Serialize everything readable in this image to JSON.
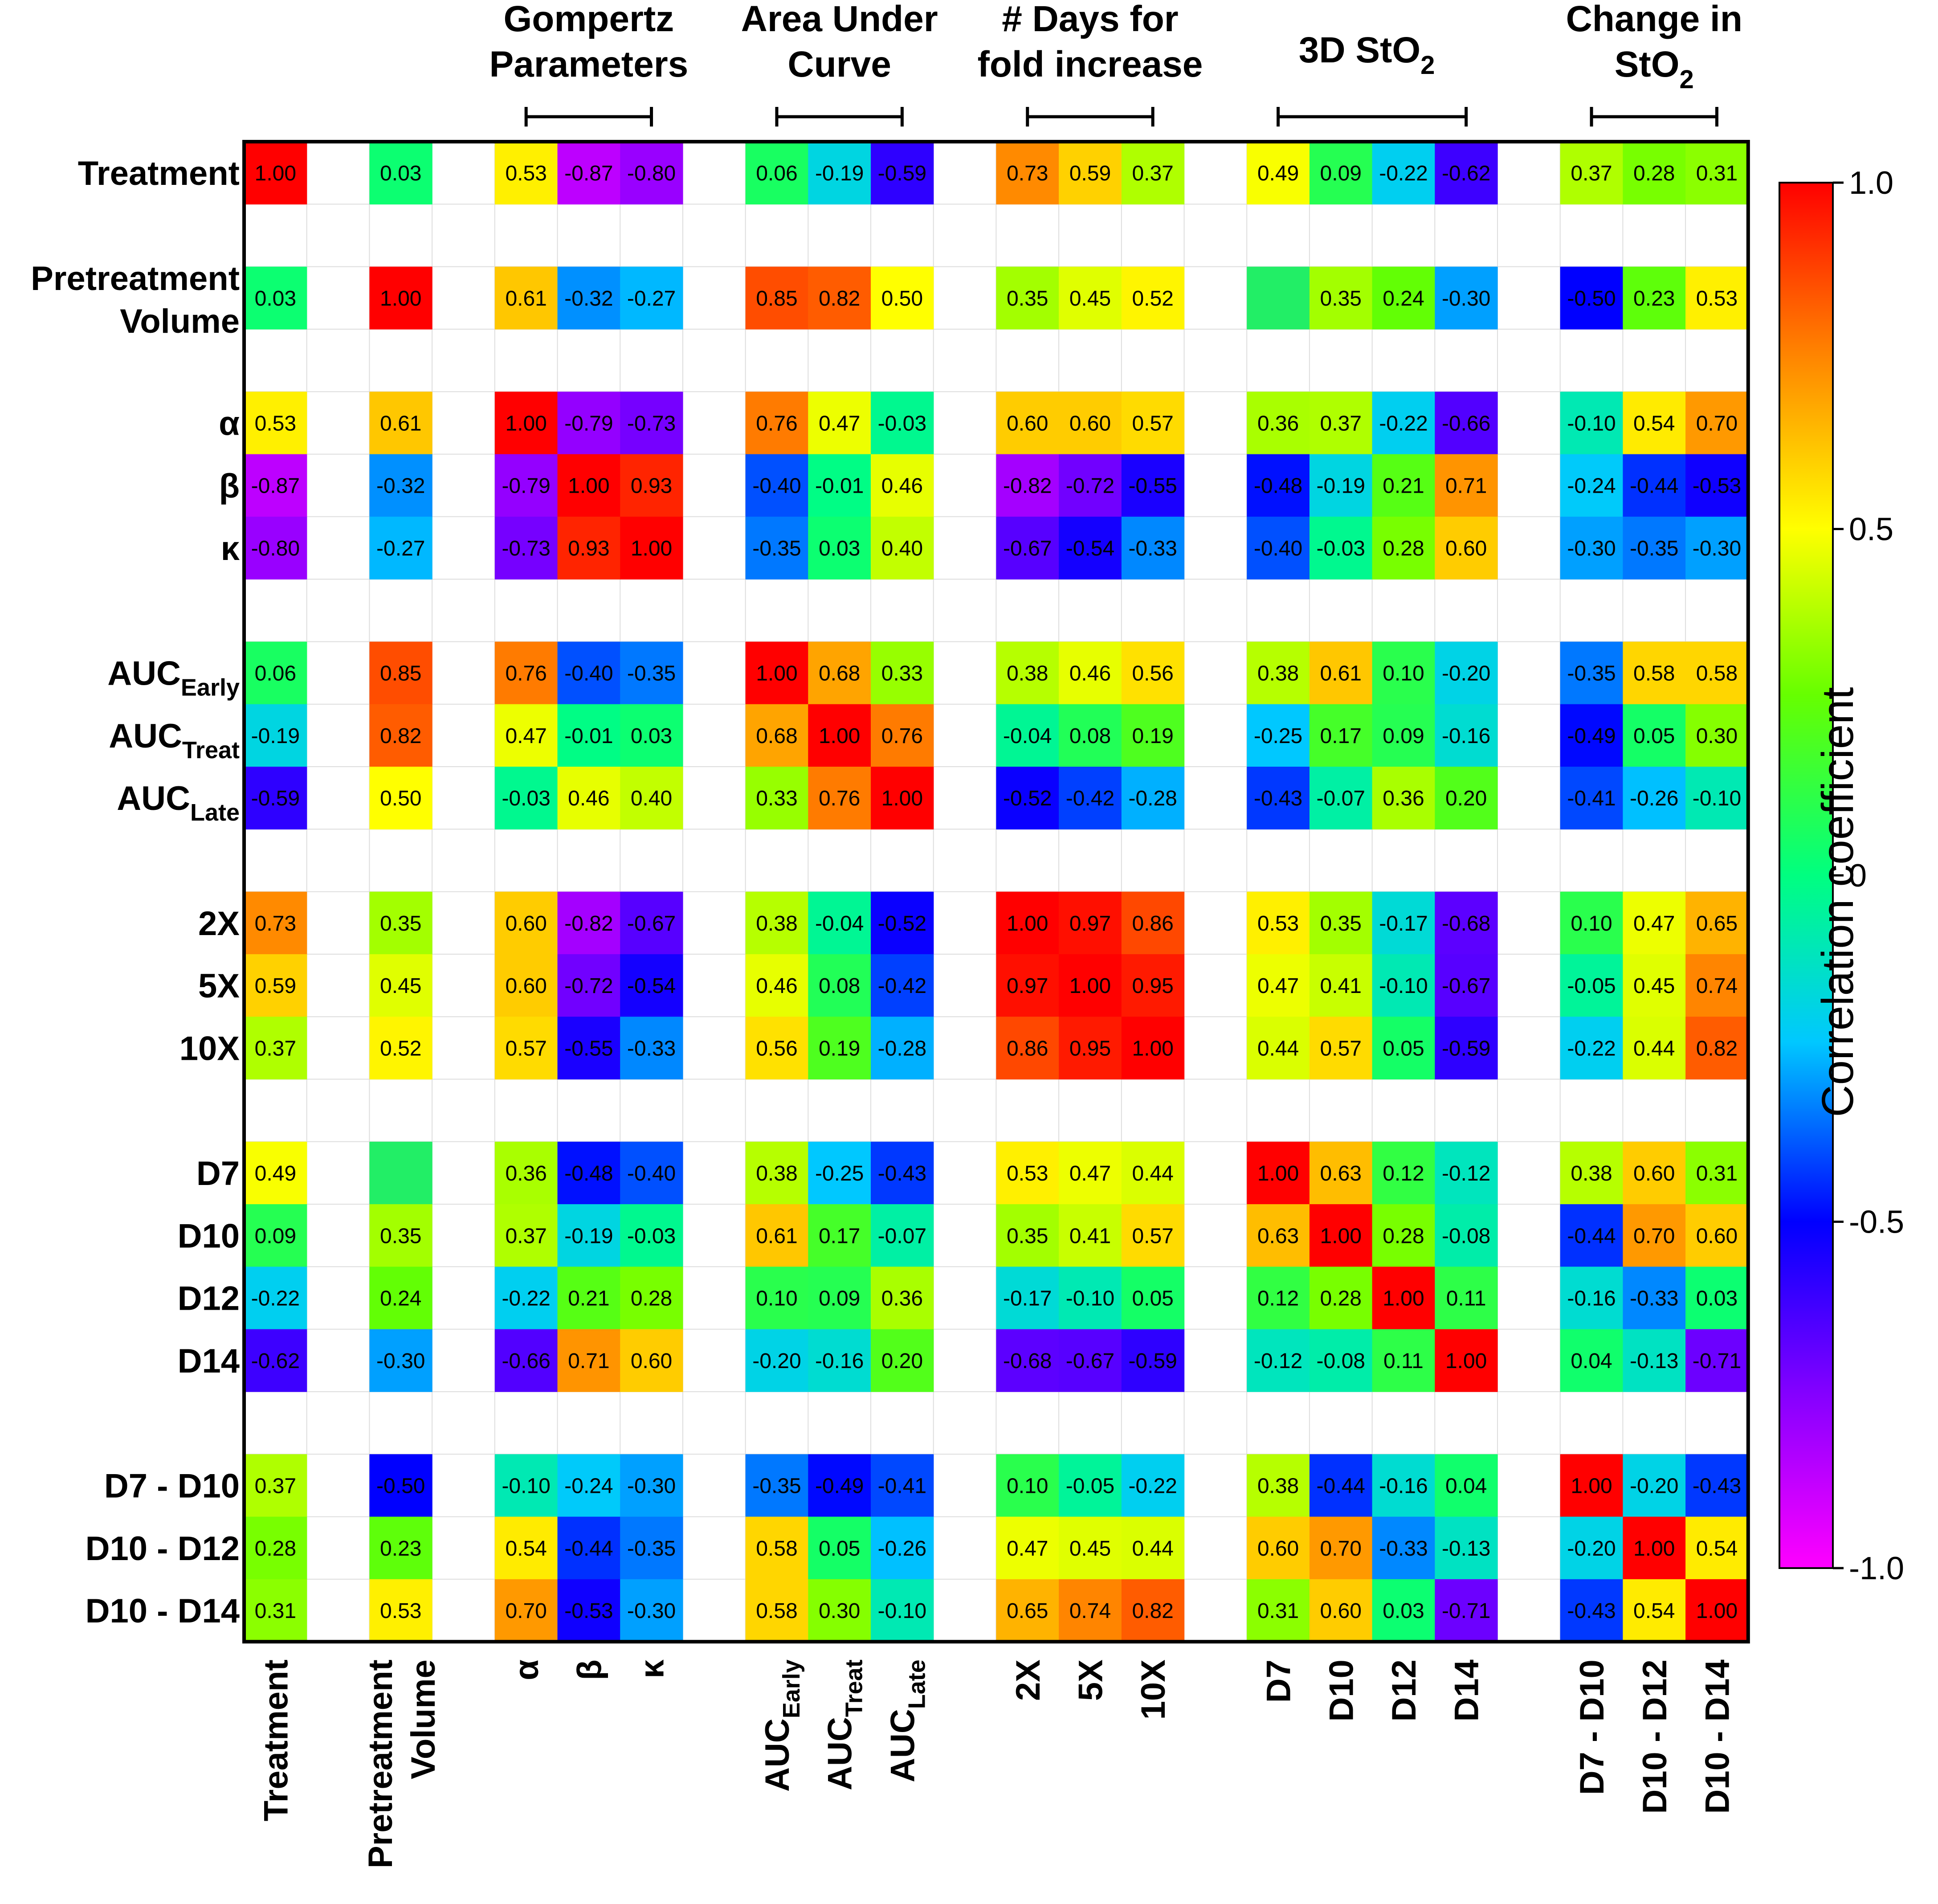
{
  "chart_data": {
    "type": "heatmap",
    "title": "",
    "colorbar": {
      "label": "Correlation coefficient",
      "range": [
        -1,
        1
      ],
      "ticks": [
        "1.0",
        "0.5",
        "0",
        "-0.5",
        "-1.0"
      ]
    },
    "labels": [
      {
        "key": "treatment",
        "text": "Treatment",
        "sub": ""
      },
      {
        "key": "pretreatment",
        "text": "Pretreatment Volume",
        "lines": [
          "Pretreatment",
          "Volume"
        ],
        "sub": ""
      },
      {
        "key": "alpha",
        "text": "α",
        "sub": ""
      },
      {
        "key": "beta",
        "text": "β",
        "sub": ""
      },
      {
        "key": "kappa",
        "text": "κ",
        "sub": ""
      },
      {
        "key": "auc_early",
        "text": "AUC",
        "sub": "Early"
      },
      {
        "key": "auc_treat",
        "text": "AUC",
        "sub": "Treat"
      },
      {
        "key": "auc_late",
        "text": "AUC",
        "sub": "Late"
      },
      {
        "key": "2x",
        "text": "2X",
        "sub": ""
      },
      {
        "key": "5x",
        "text": "5X",
        "sub": ""
      },
      {
        "key": "10x",
        "text": "10X",
        "sub": ""
      },
      {
        "key": "d7",
        "text": "D7",
        "sub": ""
      },
      {
        "key": "d10",
        "text": "D10",
        "sub": ""
      },
      {
        "key": "d12",
        "text": "D12",
        "sub": ""
      },
      {
        "key": "d14",
        "text": "D14",
        "sub": ""
      },
      {
        "key": "d7_d10",
        "text": "D7 - D10",
        "sub": ""
      },
      {
        "key": "d10_d12",
        "text": "D10 - D12",
        "sub": ""
      },
      {
        "key": "d10_d14",
        "text": "D10 - D14",
        "sub": ""
      }
    ],
    "groups": [
      {
        "name": "Gompertz Parameters",
        "lines": [
          "Gompertz",
          "Parameters"
        ],
        "sub": "",
        "members": [
          "alpha",
          "beta",
          "kappa"
        ]
      },
      {
        "name": "Area Under Curve",
        "lines": [
          "Area Under",
          "Curve"
        ],
        "sub": "",
        "members": [
          "auc_early",
          "auc_treat",
          "auc_late"
        ]
      },
      {
        "name": "# Days for fold increase",
        "lines": [
          "# Days for",
          "fold increase"
        ],
        "sub": "",
        "members": [
          "2x",
          "5x",
          "10x"
        ]
      },
      {
        "name": "3D StO2",
        "lines": [
          "3D StO"
        ],
        "sub": "2",
        "members": [
          "d7",
          "d10",
          "d12",
          "d14"
        ]
      },
      {
        "name": "Change in StO2",
        "lines": [
          "Change in",
          "StO"
        ],
        "sub": "2",
        "members": [
          "d7_d10",
          "d10_d12",
          "d10_d14"
        ]
      }
    ],
    "values": [
      [
        1.0,
        0.03,
        0.53,
        -0.87,
        -0.8,
        0.06,
        -0.19,
        -0.59,
        0.73,
        0.59,
        0.37,
        0.49,
        0.09,
        -0.22,
        -0.62,
        0.37,
        0.28,
        0.31
      ],
      [
        0.03,
        1.0,
        0.61,
        -0.32,
        -0.27,
        0.85,
        0.82,
        0.5,
        0.35,
        0.45,
        0.52,
        null,
        0.35,
        0.24,
        -0.3,
        -0.5,
        0.23,
        0.53
      ],
      [
        0.53,
        0.61,
        1.0,
        -0.79,
        -0.73,
        0.76,
        0.47,
        -0.03,
        0.6,
        0.6,
        0.57,
        0.36,
        0.37,
        -0.22,
        -0.66,
        -0.1,
        0.54,
        0.7
      ],
      [
        -0.87,
        -0.32,
        -0.79,
        1.0,
        0.93,
        -0.4,
        -0.01,
        0.46,
        -0.82,
        -0.72,
        -0.55,
        -0.48,
        -0.19,
        0.21,
        0.71,
        -0.24,
        -0.44,
        -0.53
      ],
      [
        -0.8,
        -0.27,
        -0.73,
        0.93,
        1.0,
        -0.35,
        0.03,
        0.4,
        -0.67,
        -0.54,
        -0.33,
        -0.4,
        -0.03,
        0.28,
        0.6,
        -0.3,
        -0.35,
        -0.3
      ],
      [
        0.06,
        0.85,
        0.76,
        -0.4,
        -0.35,
        1.0,
        0.68,
        0.33,
        0.38,
        0.46,
        0.56,
        0.38,
        0.61,
        0.1,
        -0.2,
        -0.35,
        0.58,
        0.58
      ],
      [
        -0.19,
        0.82,
        0.47,
        -0.01,
        0.03,
        0.68,
        1.0,
        0.76,
        -0.04,
        0.08,
        0.19,
        -0.25,
        0.17,
        0.09,
        -0.16,
        -0.49,
        0.05,
        0.3
      ],
      [
        -0.59,
        0.5,
        -0.03,
        0.46,
        0.4,
        0.33,
        0.76,
        1.0,
        -0.52,
        -0.42,
        -0.28,
        -0.43,
        -0.07,
        0.36,
        0.2,
        -0.41,
        -0.26,
        -0.1
      ],
      [
        0.73,
        0.35,
        0.6,
        -0.82,
        -0.67,
        0.38,
        -0.04,
        -0.52,
        1.0,
        0.97,
        0.86,
        0.53,
        0.35,
        -0.17,
        -0.68,
        0.1,
        0.47,
        0.65
      ],
      [
        0.59,
        0.45,
        0.6,
        -0.72,
        -0.54,
        0.46,
        0.08,
        -0.42,
        0.97,
        1.0,
        0.95,
        0.47,
        0.41,
        -0.1,
        -0.67,
        -0.05,
        0.45,
        0.74
      ],
      [
        0.37,
        0.52,
        0.57,
        -0.55,
        -0.33,
        0.56,
        0.19,
        -0.28,
        0.86,
        0.95,
        1.0,
        0.44,
        0.57,
        0.05,
        -0.59,
        -0.22,
        0.44,
        0.82
      ],
      [
        0.49,
        null,
        0.36,
        -0.48,
        -0.4,
        0.38,
        -0.25,
        -0.43,
        0.53,
        0.47,
        0.44,
        1.0,
        0.63,
        0.12,
        -0.12,
        0.38,
        0.6,
        0.31
      ],
      [
        0.09,
        0.35,
        0.37,
        -0.19,
        -0.03,
        0.61,
        0.17,
        -0.07,
        0.35,
        0.41,
        0.57,
        0.63,
        1.0,
        0.28,
        -0.08,
        -0.44,
        0.7,
        0.6
      ],
      [
        -0.22,
        0.24,
        -0.22,
        0.21,
        0.28,
        0.1,
        0.09,
        0.36,
        -0.17,
        -0.1,
        0.05,
        0.12,
        0.28,
        1.0,
        0.11,
        -0.16,
        -0.33,
        0.03
      ],
      [
        -0.62,
        -0.3,
        -0.66,
        0.71,
        0.6,
        -0.2,
        -0.16,
        0.2,
        -0.68,
        -0.67,
        -0.59,
        -0.12,
        -0.08,
        0.11,
        1.0,
        0.04,
        -0.13,
        -0.71
      ],
      [
        0.37,
        -0.5,
        -0.1,
        -0.24,
        -0.3,
        -0.35,
        -0.49,
        -0.41,
        0.1,
        -0.05,
        -0.22,
        0.38,
        -0.44,
        -0.16,
        0.04,
        1.0,
        -0.2,
        -0.43
      ],
      [
        0.28,
        0.23,
        0.54,
        -0.44,
        -0.35,
        0.58,
        0.05,
        -0.26,
        0.47,
        0.45,
        0.44,
        0.6,
        0.7,
        -0.33,
        -0.13,
        -0.2,
        1.0,
        0.54
      ],
      [
        0.31,
        0.53,
        0.7,
        -0.53,
        -0.3,
        0.58,
        0.3,
        -0.1,
        0.65,
        0.74,
        0.82,
        0.31,
        0.6,
        0.03,
        -0.71,
        -0.43,
        0.54,
        1.0
      ]
    ],
    "blank_cell_colors": {
      "1_11": "#22ee66",
      "11_1": "#22ee66"
    }
  }
}
